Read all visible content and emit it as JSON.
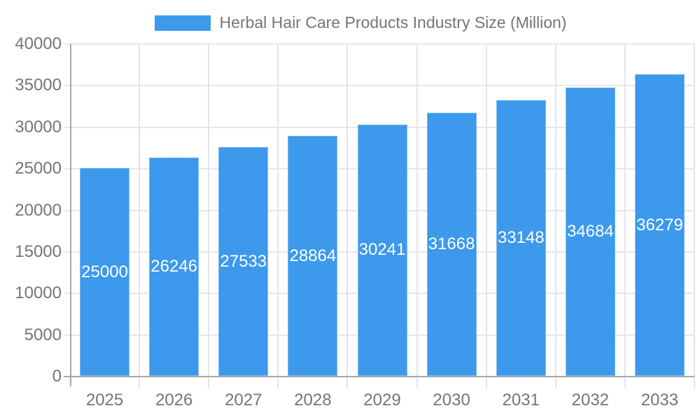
{
  "chart_data": {
    "type": "bar",
    "title": "Herbal Hair Care Products Industry Size (Million)",
    "series_name": "Herbal Hair Care Products Industry Size (Million)",
    "categories": [
      "2025",
      "2026",
      "2027",
      "2028",
      "2029",
      "2030",
      "2031",
      "2032",
      "2033"
    ],
    "values": [
      25000,
      26246,
      27533,
      28864,
      30241,
      31668,
      33148,
      34684,
      36279
    ],
    "xlabel": "",
    "ylabel": "",
    "ylim": [
      0,
      40000
    ],
    "ytick_step": 5000,
    "yticks": [
      0,
      5000,
      10000,
      15000,
      20000,
      25000,
      30000,
      35000,
      40000
    ],
    "grid": true,
    "legend_position": "top",
    "value_labels": "inside-center",
    "colors": {
      "bar": "#3C99EC",
      "bar_label_text": "#FFFFFF",
      "gridline": "#E7E7E7",
      "axis_line": "#A8A8A8",
      "axis_text": "#757575",
      "background": "#FFFFFF"
    }
  }
}
